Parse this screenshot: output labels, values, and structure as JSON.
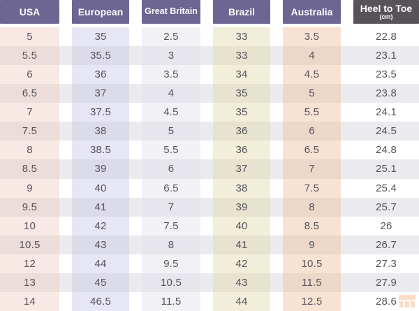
{
  "chart_data": {
    "type": "table",
    "columns": [
      {
        "key": "usa",
        "label": "USA"
      },
      {
        "key": "european",
        "label": "European"
      },
      {
        "key": "great_britain",
        "label": "Great Britain"
      },
      {
        "key": "brazil",
        "label": "Brazil"
      },
      {
        "key": "australia",
        "label": "Australia"
      },
      {
        "key": "heel_to_toe",
        "label": "Heel to Toe",
        "sublabel": "(cm)"
      }
    ],
    "rows": [
      [
        "5",
        "35",
        "2.5",
        "33",
        "3.5",
        "22.8"
      ],
      [
        "5.5",
        "35.5",
        "3",
        "33",
        "4",
        "23.1"
      ],
      [
        "6",
        "36",
        "3.5",
        "34",
        "4.5",
        "23.5"
      ],
      [
        "6.5",
        "37",
        "4",
        "35",
        "5",
        "23.8"
      ],
      [
        "7",
        "37.5",
        "4.5",
        "35",
        "5.5",
        "24.1"
      ],
      [
        "7.5",
        "38",
        "5",
        "36",
        "6",
        "24.5"
      ],
      [
        "8",
        "38.5",
        "5.5",
        "36",
        "6.5",
        "24.8"
      ],
      [
        "8.5",
        "39",
        "6",
        "37",
        "7",
        "25.1"
      ],
      [
        "9",
        "40",
        "6.5",
        "38",
        "7.5",
        "25.4"
      ],
      [
        "9.5",
        "41",
        "7",
        "39",
        "8",
        "25.7"
      ],
      [
        "10",
        "42",
        "7.5",
        "40",
        "8.5",
        "26"
      ],
      [
        "10.5",
        "43",
        "8",
        "41",
        "9",
        "26.7"
      ],
      [
        "12",
        "44",
        "9.5",
        "42",
        "10.5",
        "27.3"
      ],
      [
        "13",
        "45",
        "10.5",
        "43",
        "11.5",
        "27.9"
      ],
      [
        "14",
        "46.5",
        "11.5",
        "44",
        "12.5",
        "28.6"
      ]
    ]
  },
  "colors": {
    "header_purple": "#6d6592",
    "header_dark": "#575359",
    "header_text": "#ffffff",
    "body_text": "#57525a",
    "column_usa": "#f8e9e5",
    "column_european": "#e6e6f4",
    "column_great_britain": "#f2f1f6",
    "column_brazil": "#f1efd9",
    "column_australia": "#f7e2d3",
    "column_heel_to_toe": "#ffffff",
    "even_row_overlay": "#ebeaee",
    "watermark_orange": "#ef8b30"
  },
  "watermark": {
    "icon": "storefront-logo-icon"
  }
}
